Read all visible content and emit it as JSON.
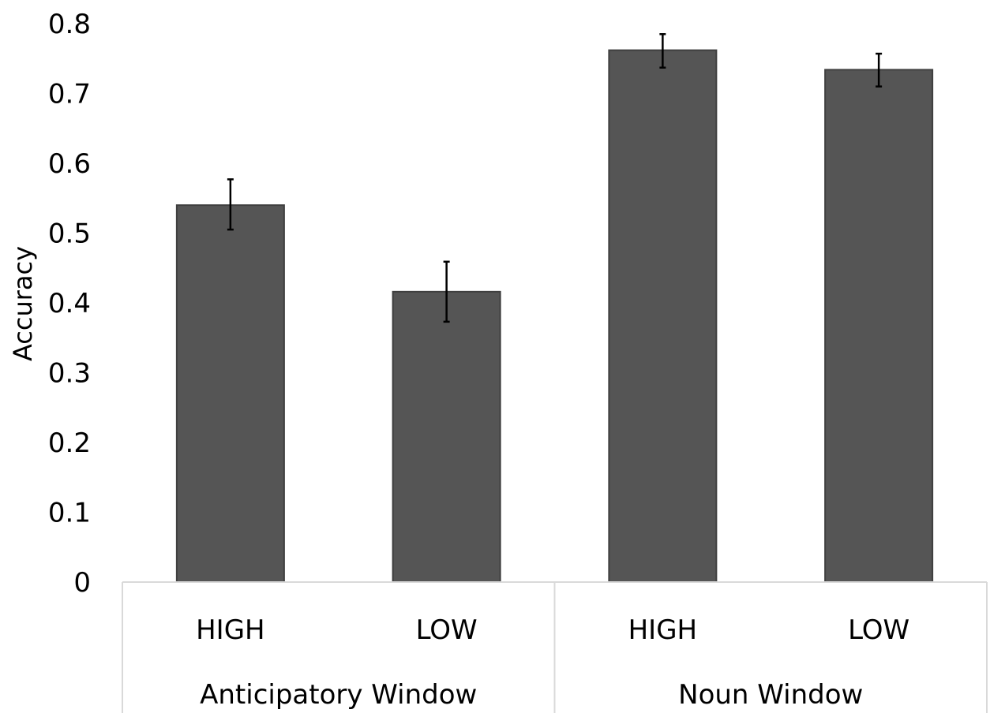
{
  "chart_data": {
    "type": "bar",
    "ylabel": "Accuracy",
    "ylim": [
      0,
      0.8
    ],
    "yticks": [
      "0",
      "0.1",
      "0.2",
      "0.3",
      "0.4",
      "0.5",
      "0.6",
      "0.7",
      "0.8"
    ],
    "categories": [
      "HIGH",
      "LOW",
      "HIGH",
      "LOW"
    ],
    "groups": [
      {
        "label": "Anticipatory Window",
        "categories": [
          "HIGH",
          "LOW"
        ]
      },
      {
        "label": "Noun Window",
        "categories": [
          "HIGH",
          "LOW"
        ]
      }
    ],
    "values": [
      0.54,
      0.416,
      0.762,
      0.734
    ],
    "error_low": [
      0.505,
      0.373,
      0.737,
      0.71
    ],
    "error_high": [
      0.577,
      0.459,
      0.785,
      0.757
    ],
    "bar_color": "#555555",
    "grid": false
  }
}
